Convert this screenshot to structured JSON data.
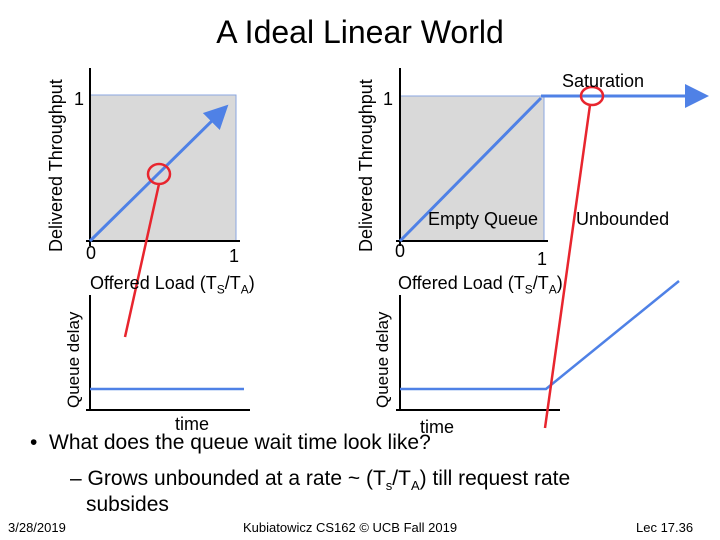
{
  "slide": {
    "title": "A Ideal Linear World",
    "left_plot": {
      "ylabel": "Delivered Throughput",
      "ytick": "1",
      "xtick_0": "0",
      "xtick_1": "1",
      "xlabel_main": "Offered Load  (T",
      "xlabel_s": "S",
      "xlabel_mid": "/T",
      "xlabel_a": "A",
      "xlabel_end": ")"
    },
    "right_plot": {
      "ylabel": "Delivered Throughput",
      "ytick": "1",
      "xtick_0": "0",
      "xtick_1": "1",
      "xlabel_main": "Offered Load  (T",
      "xlabel_s": "S",
      "xlabel_mid": "/T",
      "xlabel_a": "A",
      "xlabel_end": ")",
      "annotation_saturation": "Saturation",
      "annotation_empty": "Empty Queue",
      "annotation_unbounded": "Unbounded"
    },
    "left_delay": {
      "ylabel": "Queue delay",
      "xlabel": "time"
    },
    "right_delay": {
      "ylabel": "Queue delay",
      "xlabel": "time"
    },
    "bullets": {
      "b1": "What does the queue wait time look like?",
      "b2_a": "– Grows unbounded at a rate ~ (T",
      "b2_s": "s",
      "b2_b": "/T",
      "b2_a2": "A",
      "b2_c": ") till request rate",
      "b2_d": "subsides"
    },
    "footer": {
      "date": "3/28/2019",
      "course": "Kubiatowicz CS162 © UCB Fall 2019",
      "lecture": "Lec 17.36"
    },
    "colors": {
      "line": "#4f81e6",
      "highlight": "#e8252e",
      "box": "#d9d9d9"
    }
  }
}
